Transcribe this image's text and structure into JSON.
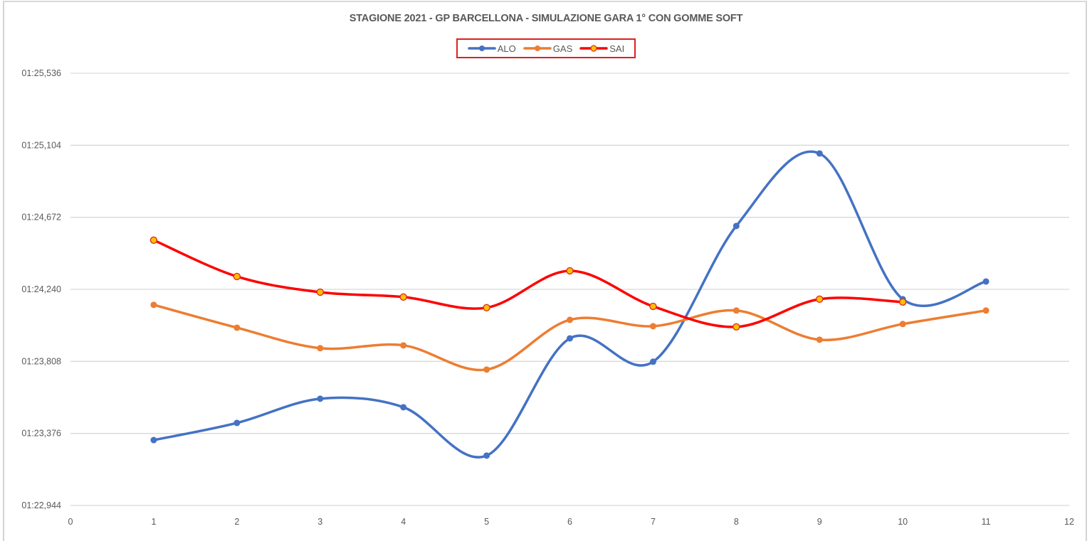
{
  "chart_data": {
    "type": "line",
    "title": "STAGIONE 2021 - GP BARCELLONA - SIMULAZIONE GARA 1° CON GOMME SOFT",
    "xlabel": "",
    "ylabel": "",
    "xlim": [
      0,
      12
    ],
    "ylim_seconds": [
      82.944,
      85.536
    ],
    "x_ticks": [
      "0",
      "1",
      "2",
      "3",
      "4",
      "5",
      "6",
      "7",
      "8",
      "9",
      "10",
      "11",
      "12"
    ],
    "y_ticks": [
      "01:22,944",
      "01:23,376",
      "01:23,808",
      "01:24,240",
      "01:24,672",
      "01:25,104",
      "01:25,536"
    ],
    "y_tick_values": [
      82.944,
      83.376,
      83.808,
      84.24,
      84.672,
      85.104,
      85.536
    ],
    "grid": "horizontal",
    "smoothed": true,
    "legend_position": "top",
    "series": [
      {
        "name": "ALO",
        "color": "#4472C4",
        "marker": "#4472C4",
        "marker_fill": "#4472C4",
        "x": [
          1,
          2,
          3,
          4,
          5,
          6,
          7,
          8,
          9,
          10,
          11
        ],
        "values": [
          83.336,
          83.439,
          83.584,
          83.533,
          83.243,
          83.946,
          83.806,
          84.62,
          85.055,
          84.181,
          84.287
        ]
      },
      {
        "name": "GAS",
        "color": "#ED7D31",
        "marker": "#ED7D31",
        "marker_fill": "#ED7D31",
        "x": [
          1,
          2,
          3,
          4,
          5,
          6,
          7,
          8,
          9,
          10,
          11
        ],
        "values": [
          84.147,
          84.01,
          83.887,
          83.904,
          83.759,
          84.057,
          84.019,
          84.113,
          83.938,
          84.032,
          84.113
        ]
      },
      {
        "name": "SAI",
        "color": "#FF0000",
        "marker": "#E0301E",
        "marker_fill": "#FFC000",
        "x": [
          1,
          2,
          3,
          4,
          5,
          6,
          7,
          8,
          9,
          10
        ],
        "values": [
          84.535,
          84.317,
          84.223,
          84.194,
          84.13,
          84.351,
          84.138,
          84.015,
          84.181,
          84.164
        ]
      }
    ]
  },
  "chart": {
    "title": "STAGIONE 2021 - GP BARCELLONA - SIMULAZIONE GARA 1° CON GOMME SOFT",
    "legend": [
      {
        "label": "ALO"
      },
      {
        "label": "GAS"
      },
      {
        "label": "SAI"
      }
    ]
  }
}
